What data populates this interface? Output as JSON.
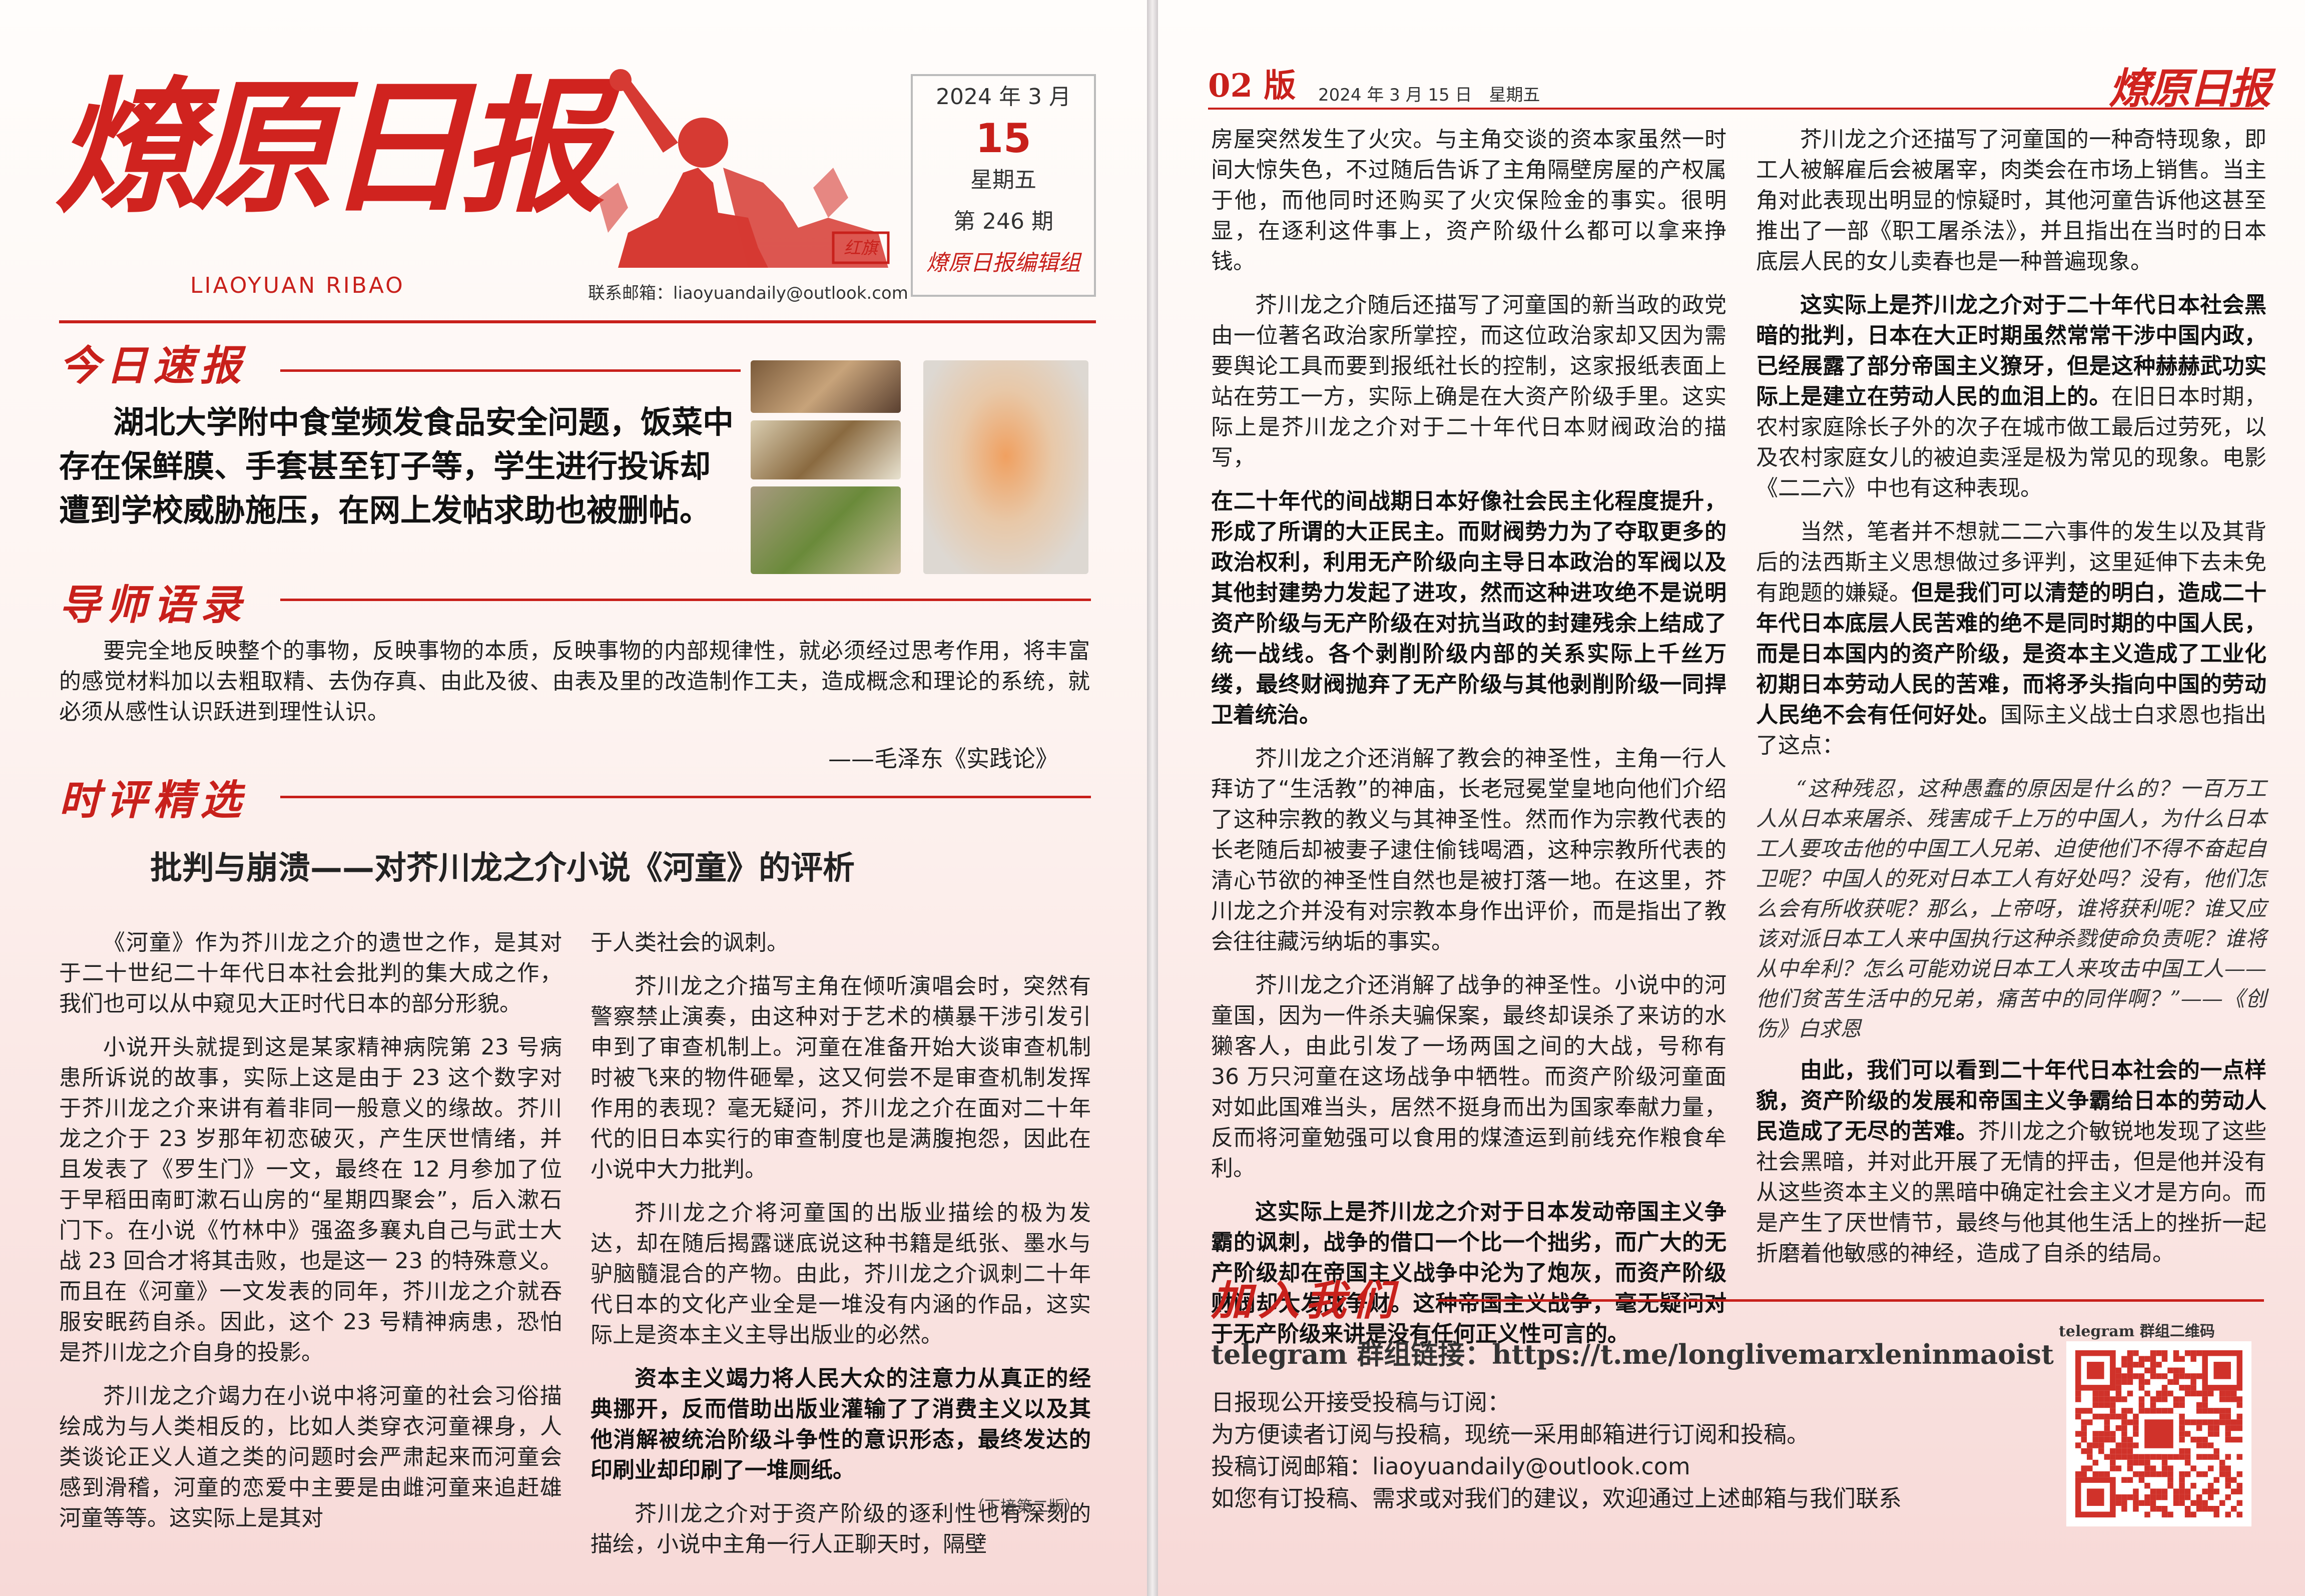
{
  "colors": {
    "accent": "#c8201b",
    "paper": "#fffdfb"
  },
  "page1": {
    "masthead": {
      "logo": "燎原日报",
      "pinyin": "LIAOYUAN   RIBAO",
      "contact": "联系邮箱：liaoyuandaily@outlook.com",
      "date_line": "2024 年 3 月",
      "day": "15",
      "weekday": "星期五",
      "issue": "第 246 期",
      "editor": "燎原日报编辑组",
      "poster_seal": "红旗"
    },
    "flash": {
      "heading": "今日速报",
      "headline": "湖北大学附中食堂频发食品安全问题，饭菜中存在保鲜膜、手套甚至钉子等，学生进行投诉却遭到学校威胁施压，在网上发帖求助也被删帖。"
    },
    "quote": {
      "heading": "导师语录",
      "text": "要完全地反映整个的事物，反映事物的本质，反映事物的内部规律性，就必须经过思考作用，将丰富的感觉材料加以去粗取精、去伪存真、由此及彼、由表及里的改造制作工夫，造成概念和理论的系统，就必须从感性认识跃进到理性认识。",
      "cite": "——毛泽东《实践论》"
    },
    "review": {
      "heading": "时评精选",
      "title": "批判与崩溃——对芥川龙之介小说《河童》的评析",
      "col1": [
        "《河童》作为芥川龙之介的遗世之作，是其对于二十世纪二十年代日本社会批判的集大成之作，我们也可以从中窥见大正时代日本的部分形貌。",
        "小说开头就提到这是某家精神病院第 23 号病患所诉说的故事，实际上这是由于 23 这个数字对于芥川龙之介来讲有着非同一般意义的缘故。芥川龙之介于 23 岁那年初恋破灭，产生厌世情绪，并且发表了《罗生门》一文，最终在 12 月参加了位于早稻田南町漱石山房的“星期四聚会”，后入漱石门下。在小说《竹林中》强盗多襄丸自己与武士大战 23 回合才将其击败，也是这一 23 的特殊意义。而且在《河童》一文发表的同年，芥川龙之介就吞服安眠药自杀。因此，这个 23 号精神病患，恐怕是芥川龙之介自身的投影。",
        "芥川龙之介竭力在小说中将河童的社会习俗描绘成为与人类相反的，比如人类穿衣河童裸身，人类谈论正义人道之类的问题时会严肃起来而河童会感到滑稽，河童的恋爱中主要是由雌河童来追赶雄河童等等。这实际上是其对"
      ],
      "col2": [
        "于人类社会的讽刺。",
        "芥川龙之介描写主角在倾听演唱会时，突然有警察禁止演奏，由这种对于艺术的横暴干涉引发引申到了审查机制上。河童在准备开始大谈审查机制时被飞来的物件砸晕，这又何尝不是审查机制发挥作用的表现？毫无疑问，芥川龙之介在面对二十年代的旧日本实行的审查制度也是满腹抱怨，因此在小说中大力批判。",
        "芥川龙之介将河童国的出版业描绘的极为发达，却在随后揭露谜底说这种书籍是纸张、墨水与驴脑髓混合的产物。由此，芥川龙之介讽刺二十年代日本的文化产业全是一堆没有内涵的作品，这实际上是资本主义主导出版业的必然。",
        "资本主义竭力将人民大众的注意力从真正的经典挪开，反而借助出版业灌输了了消费主义以及其他消解被统治阶级斗争性的意识形态，最终发达的印刷业却印刷了一堆厕纸。",
        "芥川龙之介对于资产阶级的逐利性也有深刻的描绘，小说中主角一行人正聊天时，隔壁"
      ],
      "cont": "（下接第二版）"
    }
  },
  "page2": {
    "header": {
      "edition": "02 版",
      "date": "2024 年 3 月 15 日　星期五",
      "logo": "燎原日报"
    },
    "colA": [
      {
        "t": "房屋突然发生了火灾。与主角交谈的资本家虽然一时间大惊失色，不过随后告诉了主角隔壁房屋的产权属于他，而他同时还购买了火灾保险金的事实。很明显，在逐利这件事上，资产阶级什么都可以拿来挣钱。",
        "noindent": true
      },
      {
        "t": "芥川龙之介随后还描写了河童国的新当政的政党由一位著名政治家所掌控，而这位政治家却又因为需要舆论工具而要到报纸社长的控制，这家报纸表面上站在劳工一方，实际上确是在大资产阶级手里。这实际上是芥川龙之介对于二十年代日本财阀政治的描写，"
      },
      {
        "t": "在二十年代的间战期日本好像社会民主化程度提升，形成了所谓的大正民主。而财阀势力为了夺取更多的政治权利，利用无产阶级向主导日本政治的军阀以及其他封建势力发起了进攻，然而这种进攻绝不是说明资产阶级与无产阶级在对抗当政的封建残余上结成了统一战线。各个剥削阶级内部的关系实际上千丝万缕，最终财阀抛弃了无产阶级与其他剥削阶级一同捍卫着统治。",
        "bold": true,
        "noindent": true
      },
      {
        "t": "芥川龙之介还消解了教会的神圣性，主角一行人拜访了“生活教”的神庙，长老冠冕堂皇地向他们介绍了这种宗教的教义与其神圣性。然而作为宗教代表的长老随后却被妻子逮住偷钱喝酒，这种宗教所代表的清心节欲的神圣性自然也是被打落一地。在这里，芥川龙之介并没有对宗教本身作出评价，而是指出了教会往往藏污纳垢的事实。"
      },
      {
        "t": "芥川龙之介还消解了战争的神圣性。小说中的河童国，因为一件杀夫骗保案，最终却误杀了来访的水獭客人，由此引发了一场两国之间的大战，号称有 36 万只河童在这场战争中牺牲。而资产阶级河童面对如此国难当头，居然不挺身而出为国家奉献力量，反而将河童勉强可以食用的煤渣运到前线充作粮食牟利。"
      },
      {
        "t": "这实际上是芥川龙之介对于日本发动帝国主义争霸的讽刺，战争的借口一个比一个拙劣，而广大的无产阶级却在帝国主义战争中沦为了炮灰，而资产阶级财阀却大发战争财。这种帝国主义战争，毫无疑问对于无产阶级来讲是没有任何正义性可言的。",
        "bold": true
      }
    ],
    "colB": [
      {
        "t": "芥川龙之介还描写了河童国的一种奇特现象，即工人被解雇后会被屠宰，肉类会在市场上销售。当主角对此表现出明显的惊疑时，其他河童告诉他这甚至推出了一部《职工屠杀法》，并且指出在当时的日本底层人民的女儿卖春也是一种普遍现象。"
      },
      {
        "t": "这实际上是芥川龙之介对于二十年代日本社会黑暗的批判，日本在大正时期虽然常常干涉中国内政，已经展露了部分帝国主义獠牙，但是这种赫赫武功实际上是建立在劳动人民的血泪上的。",
        "bold": true,
        "tail": "在旧日本时期，农村家庭除长子外的次子在城市做工最后过劳死，以及农村家庭女儿的被迫卖淫是极为常见的现象。电影《二二六》中也有这种表现。"
      },
      {
        "t": "当然，笔者并不想就二二六事件的发生以及其背后的法西斯主义思想做过多评判，这里延伸下去未免有跑题的嫌疑。",
        "tailbold": "但是我们可以清楚的明白，造成二十年代日本底层人民苦难的绝不是同时期的中国人民，而是日本国内的资产阶级，是资本主义造成了工业化初期日本劳动人民的苦难，而将矛头指向中国的劳动人民绝不会有任何好处。",
        "tail": "国际主义战士白求恩也指出了这点："
      },
      {
        "poem": "“这种残忍，这种愚蠢的原因是什么的？一百万工人从日本来屠杀、残害成千上万的中国人，为什么日本工人要攻击他的中国工人兄弟、迫使他们不得不奋起自卫呢？中国人的死对日本工人有好处吗？没有，他们怎么会有所收获呢？那么，上帝呀，谁将获利呢？谁又应该对派日本工人来中国执行这种杀戮使命负责呢？谁将从中牟利？怎么可能劝说日本工人来攻击中国工人——他们贫苦生活中的兄弟，痛苦中的同伴啊？”——《创伤》白求恩"
      },
      {
        "t": "由此，我们可以看到二十年代日本社会的一点样貌，资产阶级的发展和帝国主义争霸给日本的劳动人民造成了无尽的苦难。",
        "bold": true,
        "tail": "芥川龙之介敏锐地发现了这些社会黑暗，并对此开展了无情的抨击，但是他并没有从这些资本主义的黑暗中确定社会主义才是方向。而是产生了厌世情节，最终与他其他生活上的挫折一起折磨着他敏感的神经，造成了自杀的结局。"
      }
    ],
    "join": {
      "heading": "加入我们",
      "link": "telegram 群组链接：https://t.me/longlivemarxleninmaoist",
      "lines": [
        "日报现公开接受投稿与订阅：",
        "为方便读者订阅与投稿，现统一采用邮箱进行订阅和投稿。",
        "投稿订阅邮箱：liaoyuandaily@outlook.com",
        "如您有订投稿、需求或对我们的建议，欢迎通过上述邮箱与我们联系"
      ],
      "qr_label": "telegram 群组二维码"
    }
  }
}
